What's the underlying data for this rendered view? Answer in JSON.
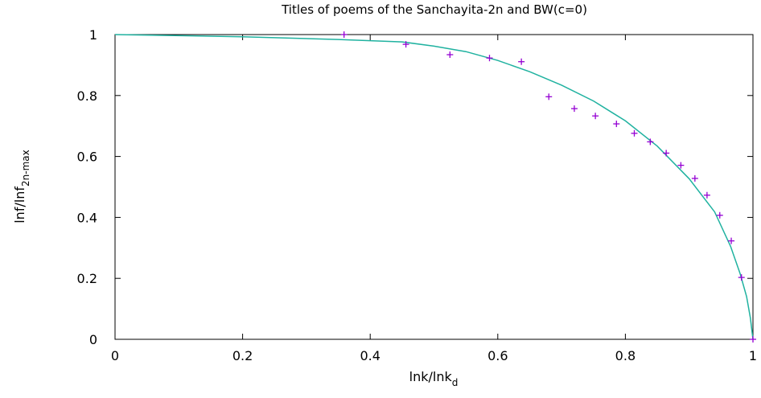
{
  "chart_data": {
    "type": "scatter",
    "title": "Titles of poems of the Sanchayita-2n and BW(c=0)",
    "xlabel": {
      "main": "lnk/lnk",
      "sub": "d"
    },
    "ylabel": {
      "main": "lnf/lnf",
      "sub": "2n-max"
    },
    "xlim": [
      0,
      1
    ],
    "ylim": [
      0,
      1
    ],
    "x_ticks": [
      "0",
      "0.2",
      "0.4",
      "0.6",
      "0.8",
      "1"
    ],
    "y_ticks": [
      "0",
      "0.2",
      "0.4",
      "0.6",
      "0.8",
      "1"
    ],
    "grid": false,
    "legend": "none",
    "series": [
      {
        "kind": "points",
        "marker": "+",
        "color": "#9400d3",
        "points": [
          [
            0.359,
            1.0
          ],
          [
            0.456,
            0.968
          ],
          [
            0.525,
            0.934
          ],
          [
            0.587,
            0.923
          ],
          [
            0.637,
            0.911
          ],
          [
            0.68,
            0.796
          ],
          [
            0.72,
            0.757
          ],
          [
            0.753,
            0.733
          ],
          [
            0.786,
            0.707
          ],
          [
            0.814,
            0.676
          ],
          [
            0.839,
            0.648
          ],
          [
            0.864,
            0.611
          ],
          [
            0.887,
            0.571
          ],
          [
            0.909,
            0.528
          ],
          [
            0.928,
            0.473
          ],
          [
            0.948,
            0.407
          ],
          [
            0.966,
            0.323
          ],
          [
            0.982,
            0.203
          ],
          [
            1.0,
            0.0
          ]
        ]
      },
      {
        "kind": "line",
        "color": "#20b2a0",
        "points": [
          [
            0.0,
            1.0
          ],
          [
            0.2,
            0.993
          ],
          [
            0.35,
            0.984
          ],
          [
            0.45,
            0.976
          ],
          [
            0.5,
            0.962
          ],
          [
            0.55,
            0.944
          ],
          [
            0.6,
            0.915
          ],
          [
            0.65,
            0.878
          ],
          [
            0.7,
            0.834
          ],
          [
            0.75,
            0.782
          ],
          [
            0.8,
            0.717
          ],
          [
            0.85,
            0.634
          ],
          [
            0.9,
            0.527
          ],
          [
            0.94,
            0.418
          ],
          [
            0.965,
            0.305
          ],
          [
            0.98,
            0.215
          ],
          [
            0.99,
            0.14
          ],
          [
            0.996,
            0.07
          ],
          [
            1.0,
            0.0
          ]
        ]
      }
    ]
  }
}
